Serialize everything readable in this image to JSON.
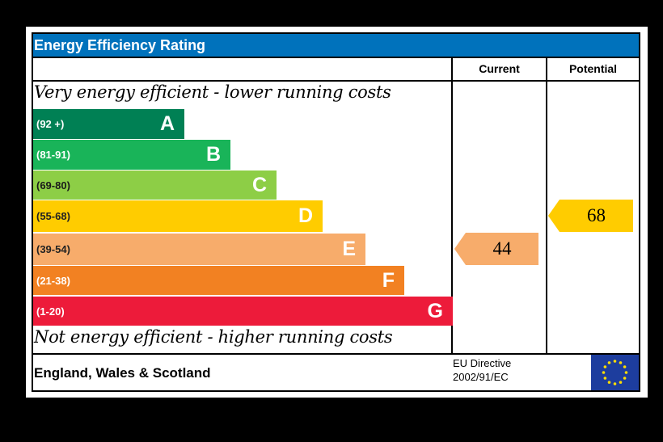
{
  "header": {
    "title": "Energy Efficiency Rating",
    "current_label": "Current",
    "potential_label": "Potential"
  },
  "top_note": "Very energy efficient - lower running costs",
  "bottom_note": "Not energy efficient - higher running costs",
  "footer": {
    "region": "England, Wales & Scotland",
    "directive_line1": "EU Directive",
    "directive_line2": "2002/91/EC",
    "flag_icon": "eu-flag-icon"
  },
  "chart_data": {
    "type": "bar",
    "title": "Energy Efficiency Rating",
    "categories": [
      "A",
      "B",
      "C",
      "D",
      "E",
      "F",
      "G"
    ],
    "ranges": [
      "(92 +)",
      "(81-91)",
      "(69-80)",
      "(55-68)",
      "(39-54)",
      "(21-38)",
      "(1-20)"
    ],
    "colors": [
      "#008054",
      "#19b459",
      "#8dce46",
      "#ffcc00",
      "#f7ac6b",
      "#f28122",
      "#ed1b3a"
    ],
    "current": {
      "value": 44,
      "band": "E",
      "color": "#f7ac6b"
    },
    "potential": {
      "value": 68,
      "band": "D",
      "color": "#ffcc00"
    }
  }
}
